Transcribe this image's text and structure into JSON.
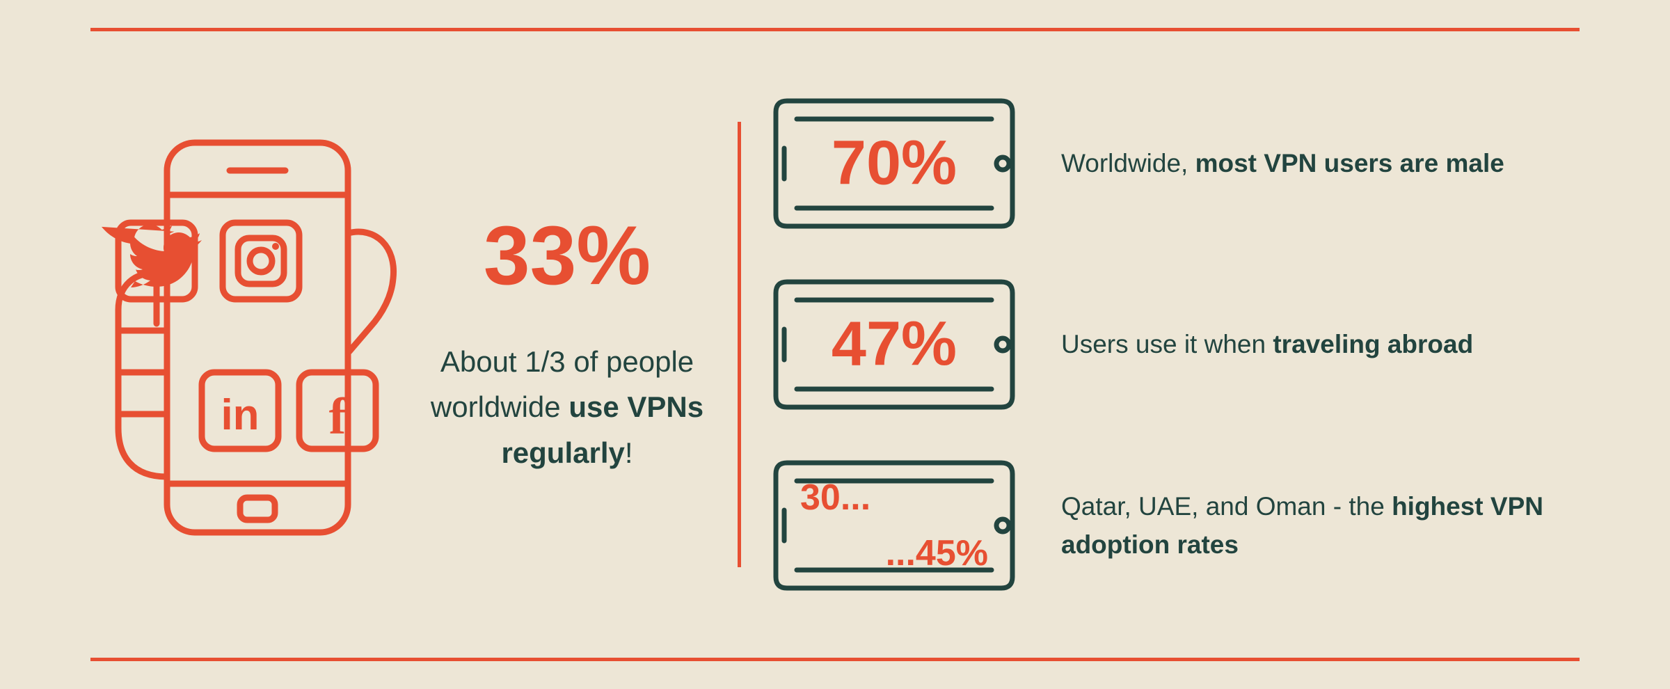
{
  "colors": {
    "bg": "#ede6d6",
    "accent": "#e74f32",
    "dark": "#22443f",
    "stroke_w": 7
  },
  "main": {
    "percent": "33%",
    "desc_pre": "About 1/3 of people worldwide ",
    "desc_bold": "use VPNs regularly",
    "desc_post": "!"
  },
  "stats": [
    {
      "value": "70%",
      "mode": "single",
      "text_pre": "Worldwide, ",
      "text_bold": "most VPN users are male",
      "text_post": ""
    },
    {
      "value": "47%",
      "mode": "single",
      "text_pre": "Users use it when ",
      "text_bold": "traveling abroad",
      "text_post": ""
    },
    {
      "value_a": "30...",
      "value_b": "...45%",
      "mode": "split",
      "text_pre": "Qatar, UAE, and Oman - the ",
      "text_bold": "highest VPN adoption rates",
      "text_post": ""
    }
  ]
}
